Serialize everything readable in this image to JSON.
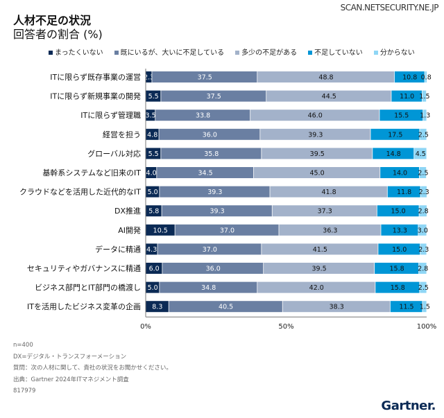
{
  "header": {
    "title": "人材不足の状況",
    "subtitle": "回答者の割合 (%)",
    "site": "SCAN.NETSECURITY.NE.JP"
  },
  "chart_data": {
    "type": "bar",
    "orientation": "horizontal",
    "stacked": true,
    "title": "人材不足の状況",
    "subtitle": "回答者の割合 (%)",
    "categories": [
      "ITに限らず既存事業の運営",
      "ITに限らず新規事業の開発",
      "ITに限らず管理職",
      "経営を担う",
      "グローバル対応",
      "基幹系システムなど旧来のIT",
      "クラウドなどを活用した近代的なIT",
      "DX推進",
      "AI開発",
      "データに精通",
      "セキュリティやガバナンスに精通",
      "ビジネス部門とIT部門の橋渡し",
      "ITを活用したビジネス変革の企画"
    ],
    "series": [
      {
        "name": "まったくいない",
        "color": "#0b2a55",
        "values": [
          2.3,
          5.5,
          3.5,
          4.8,
          5.5,
          4.0,
          5.0,
          5.8,
          10.5,
          4.3,
          6.0,
          5.0,
          8.3
        ]
      },
      {
        "name": "既にいるが、大いに不足している",
        "color": "#6a7fa2",
        "values": [
          37.5,
          37.5,
          33.8,
          36.0,
          35.8,
          34.5,
          39.3,
          39.3,
          37.0,
          37.0,
          36.0,
          34.8,
          40.5
        ]
      },
      {
        "name": "多少の不足がある",
        "color": "#a3b2ca",
        "values": [
          48.8,
          44.5,
          46.0,
          39.3,
          39.5,
          45.0,
          41.8,
          37.3,
          36.3,
          41.5,
          39.5,
          42.0,
          38.3
        ]
      },
      {
        "name": "不足していない",
        "color": "#0096d6",
        "values": [
          10.8,
          11.0,
          15.5,
          17.5,
          14.8,
          14.0,
          11.8,
          15.0,
          13.3,
          15.0,
          15.8,
          15.8,
          11.5
        ]
      },
      {
        "name": "分からない",
        "color": "#8fd6f5",
        "values": [
          0.8,
          1.5,
          1.3,
          2.5,
          4.5,
          2.5,
          2.3,
          2.8,
          3.0,
          2.3,
          2.8,
          2.5,
          1.5
        ]
      }
    ],
    "xlim": [
      0,
      100
    ],
    "xticks": [
      "0%",
      "50%",
      "100%"
    ],
    "legend": "top",
    "grid": false
  },
  "notes": [
    "n=400",
    "DX=デジタル・トランスフォーメーション",
    "質問：次の人材に関して、貴社の状況をお聞かせください。",
    "出典：Gartner 2024年ITマネジメント調査",
    "817979"
  ],
  "logo": "Gartner."
}
